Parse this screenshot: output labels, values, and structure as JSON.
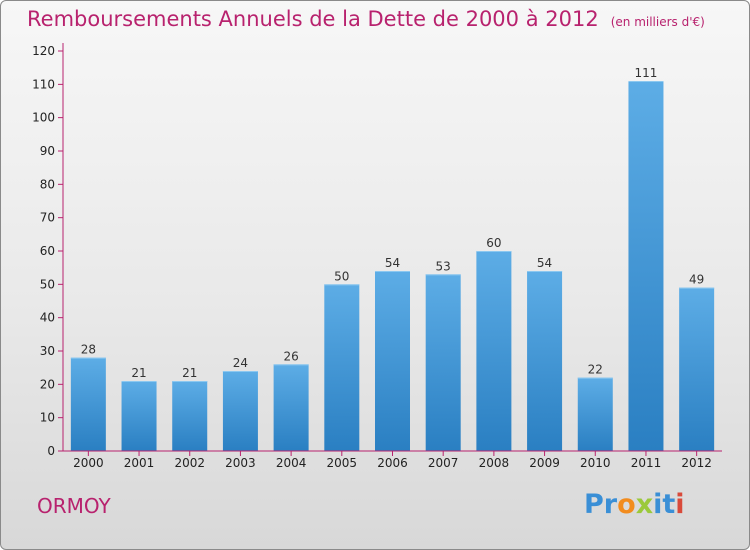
{
  "chart_data": {
    "type": "bar",
    "title": "Remboursements Annuels de la Dette de 2000 à 2012",
    "subtitle": "(en milliers d'€)",
    "xlabel": "",
    "ylabel": "",
    "categories": [
      "2000",
      "2001",
      "2002",
      "2003",
      "2004",
      "2005",
      "2006",
      "2007",
      "2008",
      "2009",
      "2010",
      "2011",
      "2012"
    ],
    "values": [
      28,
      21,
      21,
      24,
      26,
      50,
      54,
      53,
      60,
      54,
      22,
      111,
      49
    ],
    "value_labels": [
      "28",
      "21",
      "21",
      "24",
      "26",
      "50",
      "54",
      "53",
      "60",
      "54",
      "22",
      "111",
      "49"
    ],
    "ylim": [
      0,
      120
    ],
    "yticks": [
      0,
      10,
      20,
      30,
      40,
      50,
      60,
      70,
      80,
      90,
      100,
      110,
      120
    ],
    "ytick_labels": [
      "0",
      "10",
      "20",
      "30",
      "40",
      "50",
      "60",
      "70",
      "80",
      "90",
      "100",
      "110",
      "120"
    ],
    "grid": false,
    "legend": "none",
    "bar_color_top": "#5dade6",
    "bar_color_bottom": "#2a7fc2",
    "axis_color": "#b8226e"
  },
  "footer": {
    "location": "ORMOY",
    "brand_letters": [
      {
        "char": "P",
        "color": "#3a8fd6"
      },
      {
        "char": "r",
        "color": "#3a8fd6"
      },
      {
        "char": "o",
        "color": "#f28c1e"
      },
      {
        "char": "x",
        "color": "#9bc93a"
      },
      {
        "char": "i",
        "color": "#3a8fd6"
      },
      {
        "char": "t",
        "color": "#3a8fd6"
      },
      {
        "char": "i",
        "color": "#d94a3a"
      }
    ]
  }
}
